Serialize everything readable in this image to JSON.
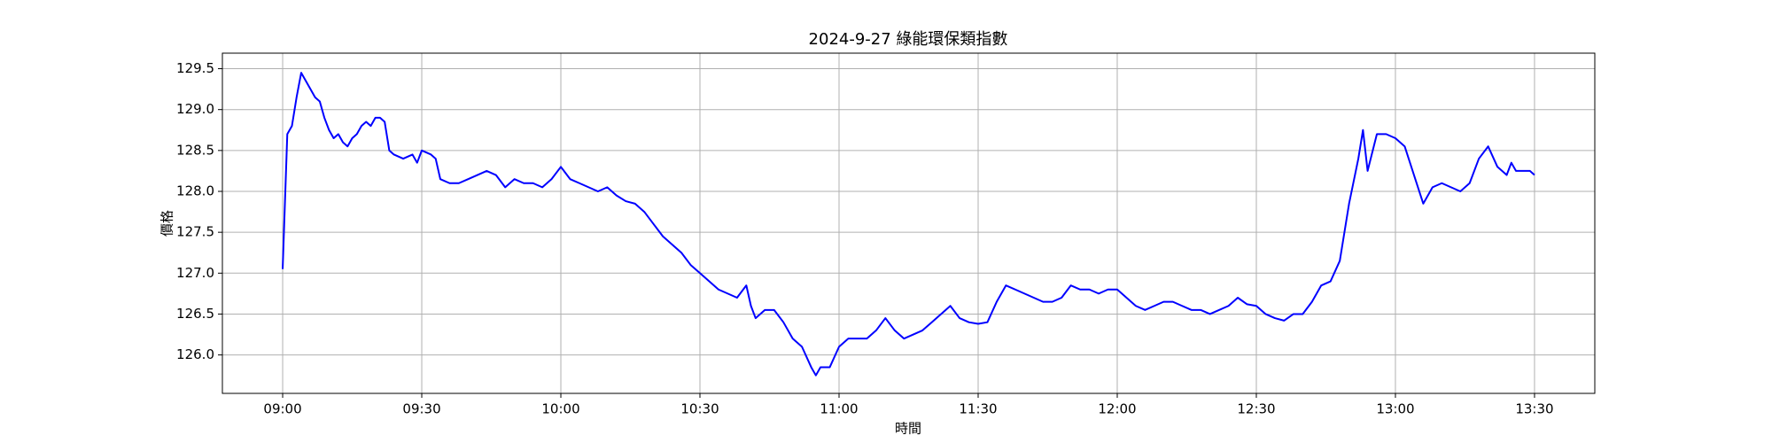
{
  "chart_data": {
    "type": "line",
    "title": "2024-9-27 綠能環保類指數",
    "xlabel": "時間",
    "ylabel": "價格",
    "x": [
      "09:00",
      "09:01",
      "09:02",
      "09:03",
      "09:04",
      "09:05",
      "09:06",
      "09:07",
      "09:08",
      "09:09",
      "09:10",
      "09:11",
      "09:12",
      "09:13",
      "09:14",
      "09:15",
      "09:16",
      "09:17",
      "09:18",
      "09:19",
      "09:20",
      "09:21",
      "09:22",
      "09:23",
      "09:24",
      "09:26",
      "09:28",
      "09:29",
      "09:30",
      "09:32",
      "09:33",
      "09:34",
      "09:36",
      "09:38",
      "09:40",
      "09:42",
      "09:44",
      "09:46",
      "09:48",
      "09:50",
      "09:52",
      "09:54",
      "09:56",
      "09:58",
      "10:00",
      "10:02",
      "10:04",
      "10:06",
      "10:08",
      "10:10",
      "10:12",
      "10:14",
      "10:16",
      "10:18",
      "10:20",
      "10:22",
      "10:24",
      "10:26",
      "10:28",
      "10:30",
      "10:32",
      "10:34",
      "10:36",
      "10:38",
      "10:40",
      "10:41",
      "10:42",
      "10:44",
      "10:46",
      "10:48",
      "10:50",
      "10:52",
      "10:54",
      "10:55",
      "10:56",
      "10:58",
      "11:00",
      "11:02",
      "11:04",
      "11:06",
      "11:08",
      "11:10",
      "11:12",
      "11:14",
      "11:16",
      "11:18",
      "11:20",
      "11:22",
      "11:24",
      "11:26",
      "11:28",
      "11:30",
      "11:32",
      "11:34",
      "11:36",
      "11:38",
      "11:40",
      "11:42",
      "11:44",
      "11:46",
      "11:48",
      "11:50",
      "11:52",
      "11:54",
      "11:56",
      "11:58",
      "12:00",
      "12:02",
      "12:04",
      "12:06",
      "12:08",
      "12:10",
      "12:12",
      "12:14",
      "12:16",
      "12:18",
      "12:20",
      "12:22",
      "12:24",
      "12:26",
      "12:28",
      "12:30",
      "12:32",
      "12:34",
      "12:36",
      "12:38",
      "12:40",
      "12:42",
      "12:44",
      "12:46",
      "12:48",
      "12:50",
      "12:52",
      "12:53",
      "12:54",
      "12:56",
      "12:58",
      "13:00",
      "13:02",
      "13:04",
      "13:06",
      "13:08",
      "13:10",
      "13:12",
      "13:14",
      "13:16",
      "13:18",
      "13:20",
      "13:22",
      "13:24",
      "13:25",
      "13:26",
      "13:29",
      "13:30"
    ],
    "series": [
      {
        "name": "價格",
        "color": "#0000ff",
        "values": [
          127.05,
          128.7,
          128.8,
          129.15,
          129.45,
          129.35,
          129.25,
          129.15,
          129.1,
          128.9,
          128.75,
          128.65,
          128.7,
          128.6,
          128.55,
          128.65,
          128.7,
          128.8,
          128.85,
          128.8,
          128.9,
          128.9,
          128.85,
          128.5,
          128.45,
          128.4,
          128.45,
          128.35,
          128.5,
          128.45,
          128.4,
          128.15,
          128.1,
          128.1,
          128.15,
          128.2,
          128.25,
          128.2,
          128.05,
          128.15,
          128.1,
          128.1,
          128.05,
          128.15,
          128.3,
          128.15,
          128.1,
          128.05,
          128.0,
          128.05,
          127.95,
          127.88,
          127.85,
          127.75,
          127.6,
          127.45,
          127.35,
          127.25,
          127.1,
          127.0,
          126.9,
          126.8,
          126.75,
          126.7,
          126.85,
          126.6,
          126.45,
          126.55,
          126.55,
          126.4,
          126.2,
          126.1,
          125.85,
          125.75,
          125.85,
          125.85,
          126.1,
          126.2,
          126.2,
          126.2,
          126.3,
          126.45,
          126.3,
          126.2,
          126.25,
          126.3,
          126.4,
          126.5,
          126.6,
          126.45,
          126.4,
          126.38,
          126.4,
          126.65,
          126.85,
          126.8,
          126.75,
          126.7,
          126.65,
          126.65,
          126.7,
          126.85,
          126.8,
          126.8,
          126.75,
          126.8,
          126.8,
          126.7,
          126.6,
          126.55,
          126.6,
          126.65,
          126.65,
          126.6,
          126.55,
          126.55,
          126.5,
          126.55,
          126.6,
          126.7,
          126.62,
          126.6,
          126.5,
          126.45,
          126.42,
          126.5,
          126.5,
          126.65,
          126.85,
          126.9,
          127.15,
          127.85,
          128.4,
          128.75,
          128.25,
          128.7,
          128.7,
          128.65,
          128.55,
          128.2,
          127.85,
          128.05,
          128.1,
          128.05,
          128.0,
          128.1,
          128.4,
          128.55,
          128.3,
          128.2,
          128.35,
          128.25,
          128.25,
          128.2
        ]
      }
    ],
    "xlim": [
      "08:47",
      "13:43"
    ],
    "xticks": [
      "09:00",
      "09:30",
      "10:00",
      "10:30",
      "11:00",
      "11:30",
      "12:00",
      "12:30",
      "13:00",
      "13:30"
    ],
    "ylim": [
      125.53,
      129.69
    ],
    "yticks": [
      {
        "value": 126,
        "label": "126.0"
      },
      126.5,
      {
        "value": 127,
        "label": "127.0"
      },
      127.5,
      {
        "value": 128,
        "label": "128.0"
      },
      128.5,
      {
        "value": 129,
        "label": "129.0"
      },
      129.5
    ],
    "grid": true
  }
}
